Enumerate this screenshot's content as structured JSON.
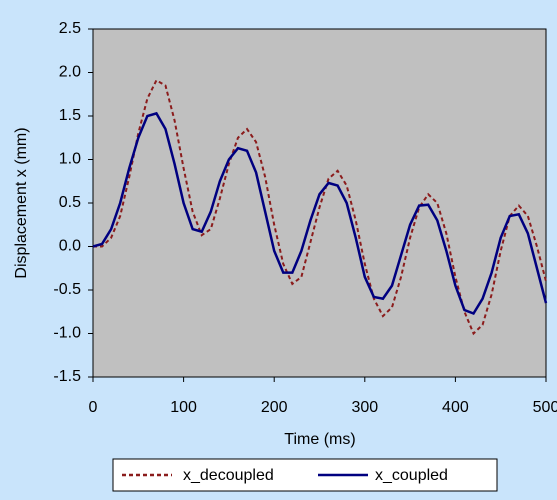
{
  "chart_data": {
    "type": "line",
    "x_label": "Time (ms)",
    "y_label": "Displacement x (mm)",
    "x": [
      0,
      10,
      20,
      30,
      40,
      50,
      60,
      70,
      80,
      90,
      100,
      110,
      120,
      130,
      140,
      150,
      160,
      170,
      180,
      190,
      200,
      210,
      220,
      230,
      240,
      250,
      260,
      270,
      280,
      290,
      300,
      310,
      320,
      330,
      340,
      350,
      360,
      370,
      380,
      390,
      400,
      410,
      420,
      430,
      440,
      450,
      460,
      470,
      480,
      490,
      500
    ],
    "series": [
      {
        "name": "x_decoupled",
        "color": "#8b1c1c",
        "dash": true,
        "values": [
          0,
          0,
          0.1,
          0.35,
          0.8,
          1.3,
          1.7,
          1.91,
          1.85,
          1.45,
          0.9,
          0.4,
          0.13,
          0.2,
          0.55,
          0.95,
          1.25,
          1.35,
          1.2,
          0.8,
          0.25,
          -0.2,
          -0.43,
          -0.35,
          0.05,
          0.45,
          0.78,
          0.87,
          0.7,
          0.3,
          -0.2,
          -0.6,
          -0.8,
          -0.7,
          -0.35,
          0.1,
          0.45,
          0.6,
          0.5,
          0.15,
          -0.35,
          -0.75,
          -1.0,
          -0.9,
          -0.55,
          -0.05,
          0.35,
          0.47,
          0.35,
          0,
          -0.4
        ]
      },
      {
        "name": "x_coupled",
        "color": "#000080",
        "dash": false,
        "values": [
          0,
          0.03,
          0.2,
          0.5,
          0.9,
          1.25,
          1.5,
          1.53,
          1.35,
          0.95,
          0.5,
          0.2,
          0.17,
          0.4,
          0.75,
          1.0,
          1.13,
          1.1,
          0.85,
          0.4,
          -0.05,
          -0.3,
          -0.3,
          -0.05,
          0.3,
          0.6,
          0.73,
          0.7,
          0.5,
          0.1,
          -0.35,
          -0.58,
          -0.6,
          -0.45,
          -0.1,
          0.25,
          0.47,
          0.48,
          0.3,
          -0.05,
          -0.45,
          -0.73,
          -0.77,
          -0.6,
          -0.3,
          0.1,
          0.35,
          0.37,
          0.15,
          -0.25,
          -0.65
        ]
      }
    ],
    "xlim": [
      0,
      500
    ],
    "xticks": [
      0,
      100,
      200,
      300,
      400,
      500
    ],
    "ylim": [
      -1.5,
      2.5
    ],
    "yticks": [
      {
        "value": -1.5,
        "label": "-1.5"
      },
      {
        "value": -1,
        "label": "-1.0"
      },
      {
        "value": -0.5,
        "label": "-0.5"
      },
      {
        "value": 0,
        "label": "0.0"
      },
      {
        "value": 0.5,
        "label": "0.5"
      },
      {
        "value": 1,
        "label": "1.0"
      },
      {
        "value": 1.5,
        "label": "1.5"
      },
      {
        "value": 2,
        "label": "2.0"
      },
      {
        "value": 2.5,
        "label": "2.5"
      }
    ],
    "grid": false,
    "legend": "bottom"
  }
}
